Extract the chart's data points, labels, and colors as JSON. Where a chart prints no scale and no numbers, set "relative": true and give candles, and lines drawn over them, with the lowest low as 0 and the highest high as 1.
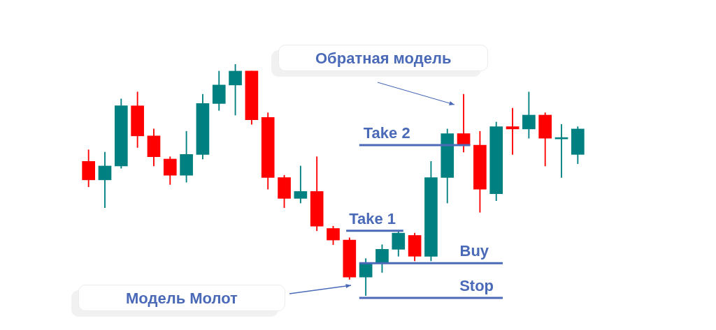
{
  "chart_data": {
    "type": "candlestick",
    "relative": true,
    "categories": [
      null,
      null,
      null,
      null,
      null,
      null,
      null,
      null,
      null,
      null,
      null,
      null,
      null,
      null,
      null,
      null,
      null,
      null,
      null,
      null,
      null,
      null,
      null,
      null,
      null,
      null,
      null,
      null,
      null,
      null,
      null
    ],
    "ohlc": [
      [
        0.58,
        0.63,
        0.47,
        0.5
      ],
      [
        0.5,
        0.62,
        0.38,
        0.56
      ],
      [
        0.56,
        0.85,
        0.55,
        0.82
      ],
      [
        0.82,
        0.88,
        0.64,
        0.69
      ],
      [
        0.69,
        0.72,
        0.56,
        0.6
      ],
      [
        0.59,
        0.6,
        0.48,
        0.52
      ],
      [
        0.52,
        0.71,
        0.49,
        0.61
      ],
      [
        0.61,
        0.87,
        0.59,
        0.83
      ],
      [
        0.83,
        0.97,
        0.8,
        0.91
      ],
      [
        0.91,
        1.0,
        0.78,
        0.97
      ],
      [
        0.97,
        0.97,
        0.74,
        0.76
      ],
      [
        0.77,
        0.79,
        0.46,
        0.51
      ],
      [
        0.51,
        0.52,
        0.38,
        0.42
      ],
      [
        0.42,
        0.56,
        0.4,
        0.45
      ],
      [
        0.45,
        0.6,
        0.28,
        0.3
      ],
      [
        0.29,
        0.3,
        0.22,
        0.24
      ],
      [
        0.24,
        0.25,
        0.07,
        0.08
      ],
      [
        0.08,
        0.16,
        0.0,
        0.14
      ],
      [
        0.14,
        0.22,
        0.1,
        0.2
      ],
      [
        0.2,
        0.28,
        0.17,
        0.27
      ],
      [
        0.26,
        0.27,
        0.15,
        0.17
      ],
      [
        0.17,
        0.58,
        0.15,
        0.51
      ],
      [
        0.51,
        0.72,
        0.4,
        0.7
      ],
      [
        0.7,
        0.87,
        0.62,
        0.65
      ],
      [
        0.65,
        0.71,
        0.36,
        0.46
      ],
      [
        0.44,
        0.75,
        0.41,
        0.73
      ],
      [
        0.73,
        0.81,
        0.61,
        0.72
      ],
      [
        0.72,
        0.88,
        0.68,
        0.78
      ],
      [
        0.78,
        0.79,
        0.56,
        0.68
      ],
      [
        0.677,
        0.74,
        0.51,
        0.683
      ],
      [
        0.61,
        0.73,
        0.57,
        0.72
      ]
    ],
    "colors": [
      "#ff0000",
      "#008080",
      "#008080",
      "#ff0000",
      "#ff0000",
      "#ff0000",
      "#008080",
      "#008080",
      "#008080",
      "#008080",
      "#ff0000",
      "#ff0000",
      "#ff0000",
      "#008080",
      "#ff0000",
      "#ff0000",
      "#ff0000",
      "#008080",
      "#008080",
      "#008080",
      "#ff0000",
      "#008080",
      "#008080",
      "#ff0000",
      "#ff0000",
      "#008080",
      "#ff0000",
      "#008080",
      "#ff0000",
      "#008080",
      "#008080"
    ],
    "ref_lines": [
      {
        "axis": "y",
        "value": 0.65,
        "label": "Take 2",
        "color": "#4a6ab8"
      },
      {
        "axis": "y",
        "value": 0.28,
        "label": "Take 1",
        "color": "#4a6ab8"
      },
      {
        "axis": "y",
        "value": 0.14,
        "label": "Buy",
        "color": "#4a6ab8"
      },
      {
        "axis": "y",
        "value": -0.01,
        "label": "Stop",
        "color": "#4a6ab8"
      }
    ],
    "annotations": [
      "Обратная модель",
      "Модель Молот"
    ]
  }
}
